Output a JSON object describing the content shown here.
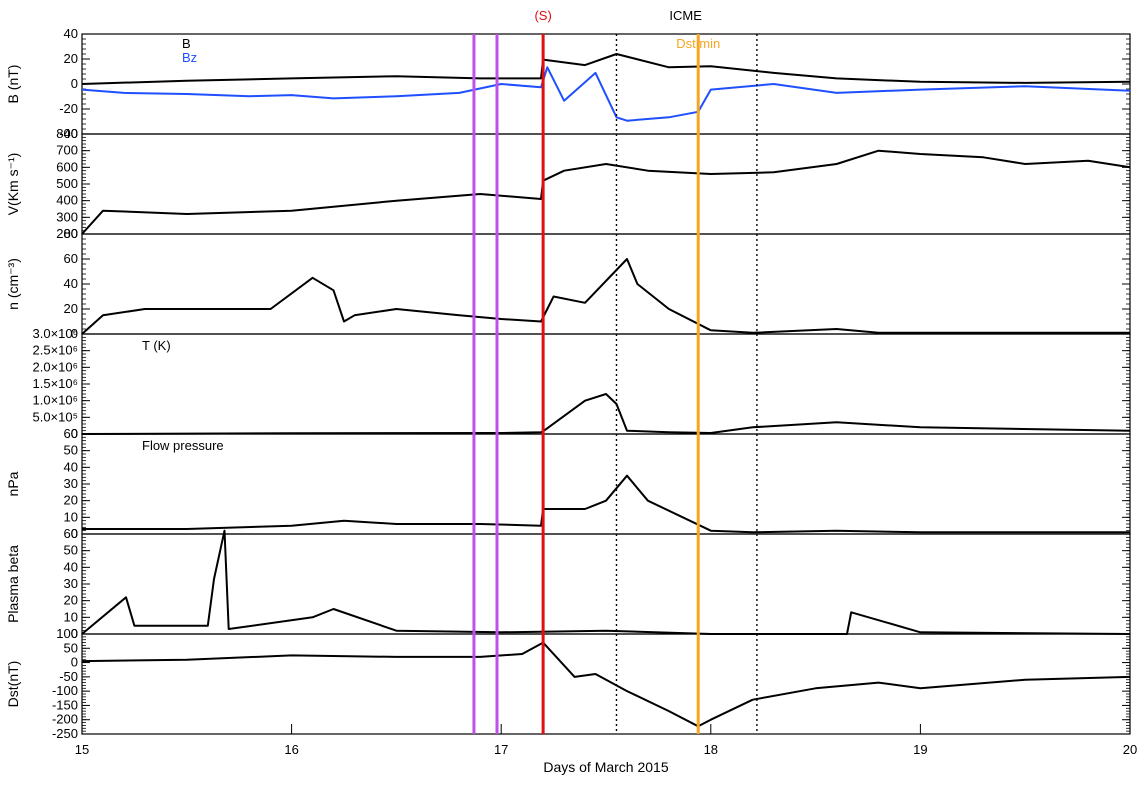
{
  "chart_data": {
    "type": "line",
    "xlabel": "Days of March 2015",
    "xlim": [
      15,
      20
    ],
    "xticks": [
      "15",
      "16",
      "17",
      "18",
      "19",
      "20"
    ],
    "markers": [
      {
        "label": "",
        "x": 16.87,
        "color": "#c050e8",
        "style": "solid"
      },
      {
        "label": "",
        "x": 16.98,
        "color": "#c050e8",
        "style": "solid"
      },
      {
        "label": "(S)",
        "x": 17.2,
        "color": "#e01010",
        "style": "solid"
      },
      {
        "label": "ICME",
        "x": 17.88,
        "color": "#000000",
        "style": "none"
      },
      {
        "label": "",
        "x": 17.55,
        "color": "#000000",
        "style": "dotted"
      },
      {
        "label": "",
        "x": 18.22,
        "color": "#000000",
        "style": "dotted"
      },
      {
        "label": "Dst min",
        "x": 17.94,
        "color": "#f5a623",
        "style": "solid"
      }
    ],
    "panels": [
      {
        "ylabel": "B (nT)",
        "ylim": [
          -40,
          50
        ],
        "yticks": [
          "-40",
          "-20",
          "0",
          "20",
          "40"
        ],
        "annotation": "",
        "series": [
          {
            "name": "B",
            "color": "#000000",
            "x": [
              15,
              15.5,
              16,
              16.5,
              16.9,
              17.19,
              17.2,
              17.4,
              17.55,
              17.8,
              18.0,
              18.3,
              18.6,
              19.0,
              19.5,
              20
            ],
            "y": [
              5,
              8,
              10,
              12,
              10,
              10,
              27,
              22,
              32,
              20,
              21,
              15,
              10,
              7,
              6,
              7
            ]
          },
          {
            "name": "Bz",
            "color": "#1f4fff",
            "x": [
              15,
              15.2,
              15.5,
              15.8,
              16.0,
              16.2,
              16.5,
              16.8,
              17.0,
              17.19,
              17.22,
              17.3,
              17.45,
              17.55,
              17.6,
              17.8,
              17.94,
              18.0,
              18.3,
              18.6,
              19.0,
              19.5,
              20
            ],
            "y": [
              0,
              -3,
              -4,
              -6,
              -5,
              -8,
              -6,
              -3,
              5,
              2,
              20,
              -10,
              15,
              -25,
              -28,
              -25,
              -20,
              0,
              5,
              -3,
              0,
              3,
              -1
            ]
          }
        ]
      },
      {
        "ylabel": "V(Km s⁻¹)",
        "ylim": [
          200,
          800
        ],
        "yticks": [
          "200",
          "300",
          "400",
          "500",
          "600",
          "700",
          "800"
        ],
        "annotation": "",
        "series": [
          {
            "name": "",
            "color": "#000000",
            "x": [
              15,
              15.1,
              15.5,
              16.0,
              16.5,
              16.9,
              17.19,
              17.2,
              17.3,
              17.5,
              17.7,
              18.0,
              18.3,
              18.6,
              18.8,
              19.0,
              19.3,
              19.5,
              19.8,
              20
            ],
            "y": [
              200,
              340,
              320,
              340,
              400,
              440,
              410,
              520,
              580,
              620,
              580,
              560,
              570,
              620,
              700,
              680,
              660,
              620,
              640,
              600
            ]
          }
        ]
      },
      {
        "ylabel": "n (cm⁻³)",
        "ylim": [
          0,
          80
        ],
        "yticks": [
          "0",
          "20",
          "40",
          "60",
          "80"
        ],
        "annotation": "",
        "series": [
          {
            "name": "",
            "color": "#000000",
            "x": [
              15,
              15.1,
              15.3,
              15.6,
              15.9,
              16.1,
              16.2,
              16.25,
              16.3,
              16.5,
              16.8,
              17.0,
              17.19,
              17.25,
              17.4,
              17.6,
              17.65,
              17.8,
              18.0,
              18.2,
              18.6,
              18.8,
              19.0,
              20
            ],
            "y": [
              0,
              15,
              20,
              20,
              20,
              45,
              35,
              10,
              15,
              20,
              15,
              12,
              10,
              30,
              25,
              60,
              40,
              20,
              3,
              1,
              4,
              1,
              1,
              1
            ]
          }
        ]
      },
      {
        "ylabel": "",
        "ylim": [
          0,
          3000000
        ],
        "yticks": [
          "0",
          "5.0×10⁵",
          "1.0×10⁶",
          "1.5×10⁶",
          "2.0×10⁶",
          "2.5×10⁶",
          "3.0×10⁶"
        ],
        "annotation": "T (K)",
        "series": [
          {
            "name": "",
            "color": "#000000",
            "x": [
              15,
              16.0,
              17.0,
              17.19,
              17.2,
              17.4,
              17.5,
              17.55,
              17.6,
              17.8,
              18.0,
              18.2,
              18.6,
              19.0,
              20
            ],
            "y": [
              0,
              20000,
              30000,
              50000,
              80000,
              1000000,
              1200000,
              900000,
              100000,
              50000,
              30000,
              200000,
              350000,
              200000,
              100000
            ]
          }
        ]
      },
      {
        "ylabel": "nPa",
        "ylim": [
          0,
          60
        ],
        "yticks": [
          "0",
          "10",
          "20",
          "30",
          "40",
          "50",
          "60"
        ],
        "annotation": "Flow pressure",
        "series": [
          {
            "name": "",
            "color": "#000000",
            "x": [
              15,
              15.5,
              16.0,
              16.25,
              16.5,
              16.9,
              17.19,
              17.2,
              17.4,
              17.5,
              17.6,
              17.7,
              18.0,
              18.2,
              18.6,
              19.0,
              20
            ],
            "y": [
              3,
              3,
              5,
              8,
              6,
              6,
              5,
              15,
              15,
              20,
              35,
              20,
              2,
              1,
              2,
              1,
              1
            ]
          }
        ]
      },
      {
        "ylabel": "Plasma beta",
        "ylim": [
          0,
          60
        ],
        "yticks": [
          "0",
          "10",
          "20",
          "30",
          "40",
          "50",
          "60"
        ],
        "annotation": "",
        "series": [
          {
            "name": "",
            "color": "#000000",
            "x": [
              15,
              15.21,
              15.25,
              15.6,
              15.63,
              15.68,
              15.7,
              16.1,
              16.2,
              16.5,
              17.0,
              17.5,
              18.0,
              18.65,
              18.67,
              19.0,
              20
            ],
            "y": [
              0,
              22,
              5,
              5,
              33,
              62,
              3,
              10,
              15,
              2,
              1,
              2,
              0,
              0,
              13,
              1,
              0
            ]
          }
        ]
      },
      {
        "ylabel": "Dst(nT)",
        "ylim": [
          -250,
          100
        ],
        "yticks": [
          "-250",
          "-200",
          "-150",
          "-100",
          "-50",
          "0",
          "50",
          "100"
        ],
        "annotation": "",
        "series": [
          {
            "name": "",
            "color": "#000000",
            "x": [
              15,
              15.5,
              16.0,
              16.5,
              16.9,
              17.1,
              17.2,
              17.35,
              17.45,
              17.6,
              17.8,
              17.94,
              18.0,
              18.2,
              18.5,
              18.8,
              19.0,
              19.5,
              20
            ],
            "y": [
              5,
              10,
              25,
              20,
              20,
              30,
              70,
              -50,
              -40,
              -100,
              -170,
              -223,
              -200,
              -130,
              -90,
              -70,
              -90,
              -60,
              -50
            ]
          }
        ]
      }
    ]
  }
}
